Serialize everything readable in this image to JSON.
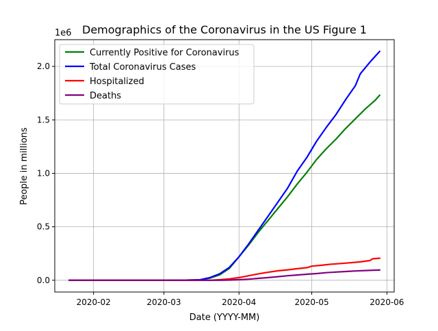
{
  "chart_data": {
    "type": "line",
    "title": "Demographics of the Coronavirus in the US Figure 1",
    "xlabel": "Date (YYYY-MM)",
    "ylabel": "People in millions",
    "y_offset_label": "1e6",
    "x_date_range": [
      "2020-01-22",
      "2020-05-29"
    ],
    "xlim": [
      "2020-01-16",
      "2020-06-04"
    ],
    "ylim": [
      -0.11,
      2.25
    ],
    "x_ticks": [
      "2020-02-01",
      "2020-03-01",
      "2020-04-01",
      "2020-05-01",
      "2020-06-01"
    ],
    "x_tick_labels": [
      "2020-02",
      "2020-03",
      "2020-04",
      "2020-05",
      "2020-06"
    ],
    "y_ticks": [
      0,
      0.5,
      1.0,
      1.5,
      2.0
    ],
    "y_tick_labels": [
      "0.0",
      "0.5",
      "1.0",
      "1.5",
      "2.0"
    ],
    "grid": true,
    "legend_position": "top-left",
    "series": [
      {
        "name": "Currently Positive for Coronavirus",
        "color": "#008000",
        "points": [
          [
            "2020-01-22",
            0
          ],
          [
            "2020-03-01",
            0
          ],
          [
            "2020-03-10",
            0.001
          ],
          [
            "2020-03-16",
            0.004
          ],
          [
            "2020-03-20",
            0.02
          ],
          [
            "2020-03-24",
            0.05
          ],
          [
            "2020-03-28",
            0.11
          ],
          [
            "2020-04-01",
            0.22
          ],
          [
            "2020-04-05",
            0.33
          ],
          [
            "2020-04-09",
            0.45
          ],
          [
            "2020-04-13",
            0.56
          ],
          [
            "2020-04-17",
            0.67
          ],
          [
            "2020-04-21",
            0.78
          ],
          [
            "2020-04-25",
            0.9
          ],
          [
            "2020-04-29",
            1.01
          ],
          [
            "2020-05-03",
            1.13
          ],
          [
            "2020-05-07",
            1.23
          ],
          [
            "2020-05-11",
            1.32
          ],
          [
            "2020-05-15",
            1.42
          ],
          [
            "2020-05-19",
            1.51
          ],
          [
            "2020-05-23",
            1.6
          ],
          [
            "2020-05-27",
            1.68
          ],
          [
            "2020-05-29",
            1.73
          ]
        ]
      },
      {
        "name": "Total Coronavirus Cases",
        "color": "#0000ff",
        "points": [
          [
            "2020-01-22",
            0
          ],
          [
            "2020-03-01",
            0
          ],
          [
            "2020-03-10",
            0.001
          ],
          [
            "2020-03-16",
            0.005
          ],
          [
            "2020-03-20",
            0.025
          ],
          [
            "2020-03-24",
            0.06
          ],
          [
            "2020-03-28",
            0.12
          ],
          [
            "2020-04-01",
            0.22
          ],
          [
            "2020-04-05",
            0.34
          ],
          [
            "2020-04-09",
            0.47
          ],
          [
            "2020-04-13",
            0.6
          ],
          [
            "2020-04-17",
            0.73
          ],
          [
            "2020-04-21",
            0.86
          ],
          [
            "2020-04-25",
            1.02
          ],
          [
            "2020-04-29",
            1.15
          ],
          [
            "2020-05-03",
            1.3
          ],
          [
            "2020-05-07",
            1.43
          ],
          [
            "2020-05-11",
            1.55
          ],
          [
            "2020-05-15",
            1.69
          ],
          [
            "2020-05-19",
            1.82
          ],
          [
            "2020-05-21",
            1.93
          ],
          [
            "2020-05-25",
            2.04
          ],
          [
            "2020-05-29",
            2.14
          ]
        ]
      },
      {
        "name": "Hospitalized",
        "color": "#ff0000",
        "points": [
          [
            "2020-01-22",
            0
          ],
          [
            "2020-03-20",
            0
          ],
          [
            "2020-03-24",
            0.005
          ],
          [
            "2020-03-28",
            0.012
          ],
          [
            "2020-04-01",
            0.025
          ],
          [
            "2020-04-05",
            0.042
          ],
          [
            "2020-04-09",
            0.06
          ],
          [
            "2020-04-13",
            0.075
          ],
          [
            "2020-04-17",
            0.088
          ],
          [
            "2020-04-21",
            0.097
          ],
          [
            "2020-04-25",
            0.108
          ],
          [
            "2020-04-29",
            0.118
          ],
          [
            "2020-05-01",
            0.132
          ],
          [
            "2020-05-05",
            0.14
          ],
          [
            "2020-05-09",
            0.15
          ],
          [
            "2020-05-13",
            0.157
          ],
          [
            "2020-05-17",
            0.164
          ],
          [
            "2020-05-21",
            0.172
          ],
          [
            "2020-05-25",
            0.184
          ],
          [
            "2020-05-26",
            0.2
          ],
          [
            "2020-05-29",
            0.206
          ]
        ]
      },
      {
        "name": "Deaths",
        "color": "#800080",
        "points": [
          [
            "2020-01-22",
            0
          ],
          [
            "2020-03-24",
            0
          ],
          [
            "2020-03-28",
            0.002
          ],
          [
            "2020-04-01",
            0.005
          ],
          [
            "2020-04-05",
            0.01
          ],
          [
            "2020-04-09",
            0.018
          ],
          [
            "2020-04-13",
            0.025
          ],
          [
            "2020-04-17",
            0.033
          ],
          [
            "2020-04-21",
            0.042
          ],
          [
            "2020-04-25",
            0.049
          ],
          [
            "2020-04-29",
            0.056
          ],
          [
            "2020-05-03",
            0.063
          ],
          [
            "2020-05-07",
            0.071
          ],
          [
            "2020-05-11",
            0.077
          ],
          [
            "2020-05-15",
            0.082
          ],
          [
            "2020-05-19",
            0.087
          ],
          [
            "2020-05-23",
            0.091
          ],
          [
            "2020-05-29",
            0.096
          ]
        ]
      }
    ]
  }
}
